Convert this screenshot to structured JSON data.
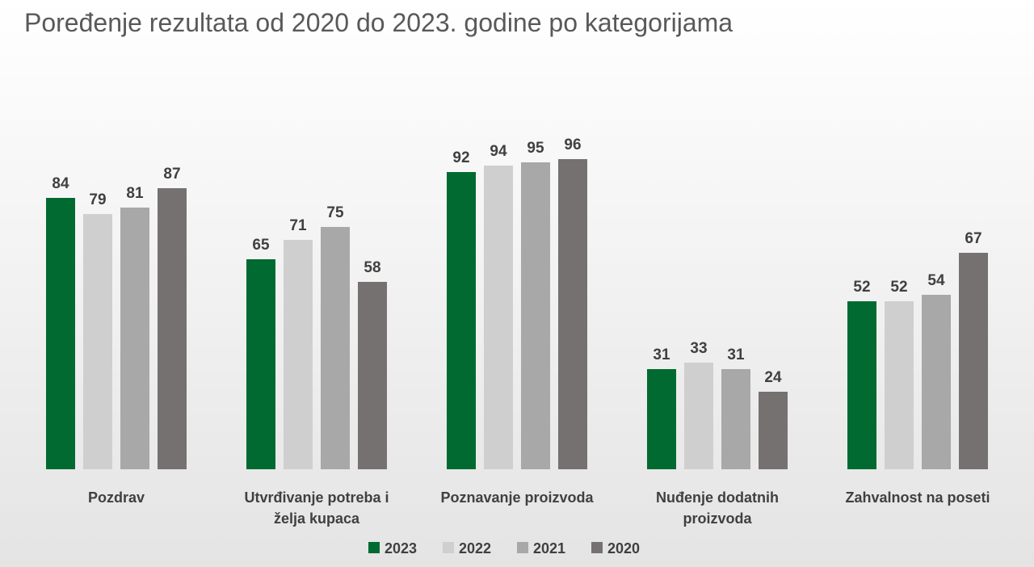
{
  "chart_data": {
    "type": "bar",
    "title": "Poređenje rezultata od 2020 do 2023. godine po kategorijama",
    "categories": [
      [
        "Pozdrav"
      ],
      [
        "Utvrđivanje potreba i",
        "želja kupaca"
      ],
      [
        "Poznavanje proizvoda"
      ],
      [
        "Nuđenje dodatnih",
        "proizvoda"
      ],
      [
        "Zahvalnost na poseti"
      ]
    ],
    "series": [
      {
        "name": "2023",
        "color": "#006A31",
        "values": [
          84,
          65,
          92,
          31,
          52
        ]
      },
      {
        "name": "2022",
        "color": "#CFCFCF",
        "values": [
          79,
          71,
          94,
          33,
          52
        ]
      },
      {
        "name": "2021",
        "color": "#A8A8A8",
        "values": [
          81,
          75,
          95,
          31,
          54
        ]
      },
      {
        "name": "2020",
        "color": "#767171",
        "values": [
          87,
          58,
          96,
          24,
          67
        ]
      }
    ],
    "ylim": [
      0,
      100
    ],
    "grid": false,
    "data_labels": true,
    "legend_position": "bottom"
  }
}
